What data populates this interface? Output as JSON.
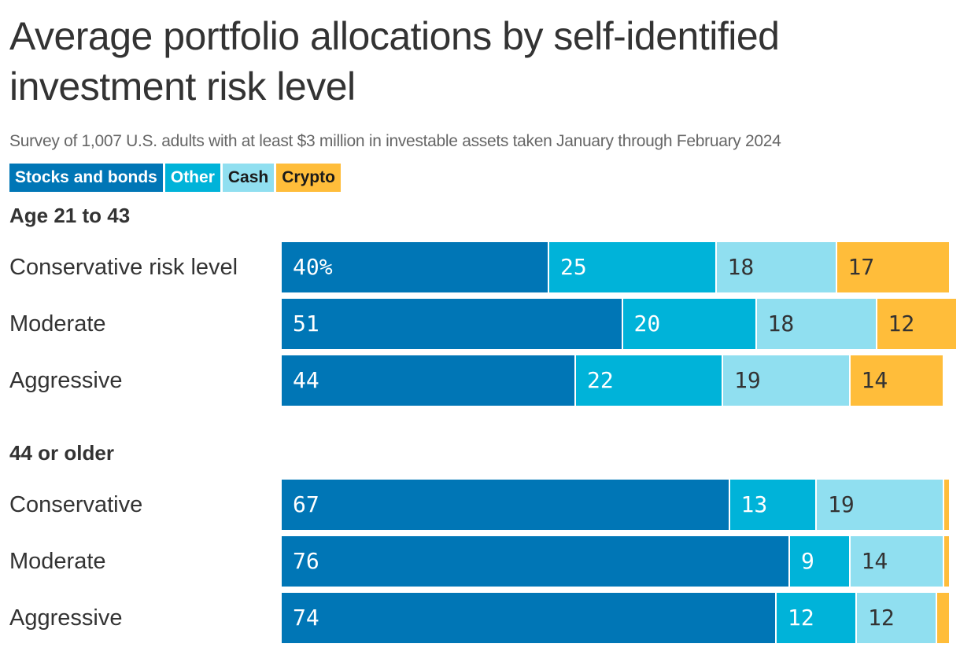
{
  "title": "Average portfolio allocations by self-identified investment risk level",
  "subtitle": "Survey of 1,007 U.S. adults with at least $3 million in investable assets taken January through February 2024",
  "colors": {
    "Stocks and bonds": "#0076b6",
    "Other": "#00b3d9",
    "Cash": "#90dff0",
    "Crypto": "#ffbd3a"
  },
  "chart_data": {
    "type": "bar",
    "orientation": "horizontal",
    "stacked": true,
    "value_unit": "%",
    "legend": [
      "Stocks and bonds",
      "Other",
      "Cash",
      "Crypto"
    ],
    "groups": [
      {
        "label": "Age 21 to 43",
        "rows": [
          {
            "label": "Conservative risk level",
            "values": [
              40,
              25,
              18,
              17
            ],
            "labels": [
              "40%",
              "25",
              "18",
              "17"
            ]
          },
          {
            "label": "Moderate",
            "values": [
              51,
              20,
              18,
              12
            ],
            "labels": [
              "51",
              "20",
              "18",
              "12"
            ]
          },
          {
            "label": "Aggressive",
            "values": [
              44,
              22,
              19,
              14
            ],
            "labels": [
              "44",
              "22",
              "19",
              "14"
            ]
          }
        ]
      },
      {
        "label": "44 or older",
        "rows": [
          {
            "label": "Conservative",
            "values": [
              67,
              13,
              19,
              1
            ],
            "labels": [
              "67",
              "13",
              "19",
              ""
            ]
          },
          {
            "label": "Moderate",
            "values": [
              76,
              9,
              14,
              1
            ],
            "labels": [
              "76",
              "9",
              "14",
              ""
            ]
          },
          {
            "label": "Aggressive",
            "values": [
              74,
              12,
              12,
              2
            ],
            "labels": [
              "74",
              "12",
              "12",
              ""
            ]
          }
        ]
      }
    ]
  }
}
